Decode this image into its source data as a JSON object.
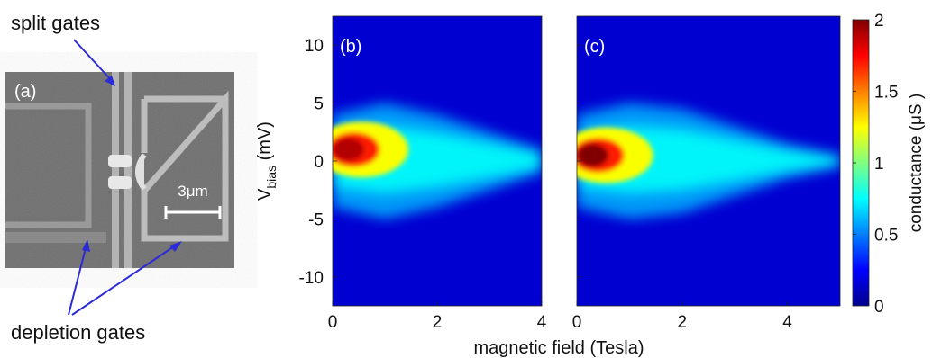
{
  "figure": {
    "panel_a": {
      "label": "(a)",
      "scale_bar": "3μm",
      "annotations": {
        "split_gates": "split gates",
        "depletion_gates": "depletion gates"
      }
    }
  },
  "chart_data": [
    {
      "type": "heatmap",
      "panel_label": "(b)",
      "xlabel": "magnetic field (Tesla)",
      "ylabel": "V",
      "ylabel_sub": "bias",
      "ylabel_unit": " (mV)",
      "xlim": [
        0,
        4
      ],
      "ylim": [
        -12.5,
        12.5
      ],
      "xticks": [
        "0",
        "2",
        "4"
      ],
      "xtick_values": [
        0,
        2,
        4
      ],
      "yticks": [
        "10",
        "5",
        "0",
        "-5",
        "-10"
      ],
      "ytick_values": [
        10,
        5,
        0,
        -5,
        -10
      ],
      "colorscale": "jet",
      "zlim": [
        0,
        2
      ],
      "features": {
        "peak_conductance": 1.9,
        "peak_location": {
          "field": 0.2,
          "bias": 1
        },
        "envelope_half_width_mV": [
          {
            "field": 0,
            "bias": 4
          },
          {
            "field": 1,
            "bias": 5
          },
          {
            "field": 2,
            "bias": 4
          },
          {
            "field": 3,
            "bias": 2.5
          },
          {
            "field": 4,
            "bias": 1
          }
        ]
      }
    },
    {
      "type": "heatmap",
      "panel_label": "(c)",
      "xlim": [
        0,
        5
      ],
      "ylim": [
        -12.5,
        12.5
      ],
      "xticks": [
        "0",
        "2",
        "4"
      ],
      "xtick_values": [
        0,
        2,
        4
      ],
      "colorscale": "jet",
      "zlim": [
        0,
        2
      ],
      "features": {
        "peak_conductance": 2.0,
        "peak_location": {
          "field": 0.2,
          "bias": 0.5
        },
        "envelope_half_width_mV": [
          {
            "field": 0,
            "bias": 4
          },
          {
            "field": 1,
            "bias": 5
          },
          {
            "field": 2,
            "bias": 4.5
          },
          {
            "field": 3,
            "bias": 3
          },
          {
            "field": 4,
            "bias": 1.5
          },
          {
            "field": 5,
            "bias": 0.5
          }
        ]
      }
    }
  ],
  "colorbar": {
    "label": "conductance (μS )",
    "ticks": [
      "2",
      "1.5",
      "1",
      "0.5",
      "0"
    ],
    "tick_values": [
      2,
      1.5,
      1,
      0.5,
      0
    ],
    "range": [
      0,
      2
    ]
  }
}
